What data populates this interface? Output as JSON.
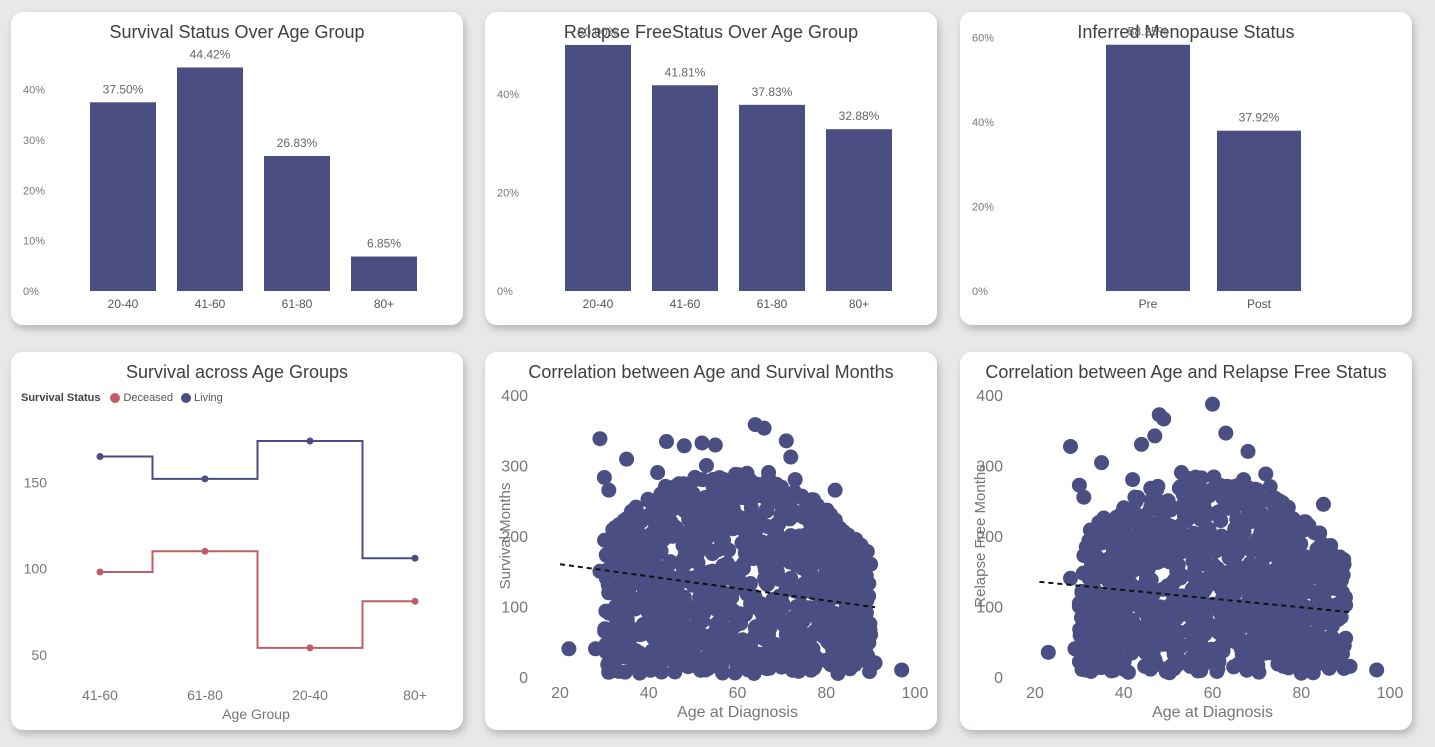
{
  "colors": {
    "bar": "#4a4e82",
    "living": "#4a4e82",
    "deceased": "#c15d67",
    "trend": "#111111",
    "axis_text": "#777777"
  },
  "chart_data": [
    {
      "type": "bar",
      "title": "Survival Status Over Age Group",
      "categories": [
        "20-40",
        "41-60",
        "61-80",
        "80+"
      ],
      "values": [
        37.5,
        44.42,
        26.83,
        6.85
      ],
      "data_labels": [
        "37.50%",
        "44.42%",
        "26.83%",
        "6.85%"
      ],
      "yticks": [
        "0%",
        "10%",
        "20%",
        "30%",
        "40%"
      ],
      "ylim": [
        0,
        46.5
      ]
    },
    {
      "type": "bar",
      "title": "Relapse FreeStatus Over Age Group",
      "categories": [
        "20-40",
        "41-60",
        "61-80",
        "80+"
      ],
      "values": [
        50.0,
        41.81,
        37.83,
        32.88
      ],
      "data_labels": [
        "50.00%",
        "41.81%",
        "37.83%",
        "32.88%"
      ],
      "yticks": [
        "0%",
        "20%",
        "40%"
      ],
      "ylim": [
        0,
        50.6
      ]
    },
    {
      "type": "bar",
      "title": "Inferred Menopause Status",
      "categories": [
        "Pre",
        "Post"
      ],
      "values": [
        58.25,
        37.92
      ],
      "data_labels": [
        "58.25%",
        "37.92%"
      ],
      "yticks": [
        "0%",
        "20%",
        "40%",
        "60%"
      ],
      "ylim": [
        0,
        58.9
      ]
    },
    {
      "type": "line",
      "title": "Survival across Age Groups",
      "xlabel": "Age Group",
      "legend_title": "Survival Status",
      "categories": [
        "41-60",
        "61-80",
        "20-40",
        "80+"
      ],
      "series": [
        {
          "name": "Deceased",
          "values": [
            98,
            110,
            54,
            81
          ]
        },
        {
          "name": "Living",
          "values": [
            165,
            152,
            174,
            106
          ]
        }
      ],
      "yticks": [
        "50",
        "100",
        "150"
      ],
      "ylim": [
        40,
        185
      ]
    },
    {
      "type": "scatter",
      "title": "Correlation between Age and Survival Months",
      "xlabel": "Age at Diagnosis",
      "ylabel": "Survival Months",
      "xlim": [
        20,
        100
      ],
      "ylim": [
        0,
        400
      ],
      "xticks": [
        "20",
        "40",
        "60",
        "80",
        "100"
      ],
      "yticks": [
        "0",
        "100",
        "200",
        "300",
        "400"
      ],
      "trend": {
        "x": [
          20,
          91
        ],
        "y": [
          160,
          99
        ]
      },
      "points": [
        [
          22,
          40
        ],
        [
          29,
          338
        ],
        [
          30,
          283
        ],
        [
          31,
          265
        ],
        [
          35,
          309
        ],
        [
          44,
          334
        ],
        [
          48,
          328
        ],
        [
          49,
          267
        ],
        [
          52,
          332
        ],
        [
          55,
          329
        ],
        [
          64,
          358
        ],
        [
          66,
          353
        ],
        [
          71,
          335
        ],
        [
          72,
          312
        ],
        [
          82,
          265
        ],
        [
          90,
          160
        ],
        [
          97,
          10
        ],
        [
          29,
          150
        ],
        [
          31,
          120
        ],
        [
          28,
          40
        ],
        [
          33,
          90
        ],
        [
          35,
          200
        ],
        [
          37,
          160
        ],
        [
          38,
          60
        ],
        [
          40,
          250
        ],
        [
          41,
          110
        ],
        [
          42,
          180
        ],
        [
          43,
          70
        ],
        [
          45,
          220
        ],
        [
          46,
          140
        ],
        [
          47,
          30
        ],
        [
          48,
          90
        ],
        [
          50,
          260
        ],
        [
          51,
          175
        ],
        [
          52,
          60
        ],
        [
          53,
          120
        ],
        [
          54,
          210
        ],
        [
          55,
          20
        ],
        [
          56,
          150
        ],
        [
          57,
          280
        ],
        [
          58,
          90
        ],
        [
          59,
          240
        ],
        [
          60,
          40
        ],
        [
          61,
          190
        ],
        [
          62,
          130
        ],
        [
          63,
          270
        ],
        [
          64,
          70
        ],
        [
          65,
          220
        ],
        [
          66,
          160
        ],
        [
          67,
          30
        ],
        [
          68,
          110
        ],
        [
          69,
          250
        ],
        [
          70,
          190
        ],
        [
          71,
          60
        ],
        [
          72,
          140
        ],
        [
          73,
          230
        ],
        [
          74,
          90
        ],
        [
          75,
          170
        ],
        [
          76,
          20
        ],
        [
          77,
          120
        ],
        [
          78,
          200
        ],
        [
          79,
          60
        ],
        [
          80,
          150
        ],
        [
          81,
          230
        ],
        [
          82,
          90
        ],
        [
          83,
          40
        ],
        [
          84,
          180
        ],
        [
          85,
          120
        ],
        [
          86,
          60
        ],
        [
          87,
          140
        ],
        [
          88,
          30
        ],
        [
          89,
          90
        ],
        [
          90,
          60
        ],
        [
          91,
          20
        ],
        [
          44,
          100
        ],
        [
          50,
          130
        ],
        [
          56,
          50
        ],
        [
          62,
          210
        ],
        [
          68,
          80
        ],
        [
          74,
          200
        ],
        [
          36,
          230
        ],
        [
          39,
          30
        ],
        [
          42,
          290
        ],
        [
          47,
          200
        ],
        [
          53,
          300
        ],
        [
          58,
          180
        ],
        [
          63,
          100
        ],
        [
          67,
          290
        ],
        [
          73,
          280
        ],
        [
          77,
          40
        ],
        [
          84,
          80
        ],
        [
          86,
          160
        ],
        [
          88,
          110
        ]
      ]
    },
    {
      "type": "scatter",
      "title": "Correlation between Age and Relapse Free Status",
      "xlabel": "Age at Diagnosis",
      "ylabel": "Relapse Free Months",
      "xlim": [
        20,
        100
      ],
      "ylim": [
        0,
        400
      ],
      "xticks": [
        "20",
        "40",
        "60",
        "80",
        "100"
      ],
      "yticks": [
        "0",
        "100",
        "200",
        "300",
        "400"
      ],
      "trend": {
        "x": [
          21,
          91
        ],
        "y": [
          135,
          92
        ]
      },
      "points": [
        [
          23,
          35
        ],
        [
          28,
          327
        ],
        [
          30,
          272
        ],
        [
          31,
          255
        ],
        [
          35,
          304
        ],
        [
          44,
          330
        ],
        [
          47,
          342
        ],
        [
          48,
          372
        ],
        [
          49,
          366
        ],
        [
          60,
          387
        ],
        [
          63,
          346
        ],
        [
          68,
          320
        ],
        [
          72,
          288
        ],
        [
          85,
          245
        ],
        [
          90,
          102
        ],
        [
          97,
          10
        ],
        [
          28,
          140
        ],
        [
          30,
          100
        ],
        [
          29,
          40
        ],
        [
          33,
          80
        ],
        [
          35,
          190
        ],
        [
          37,
          150
        ],
        [
          38,
          50
        ],
        [
          40,
          240
        ],
        [
          41,
          100
        ],
        [
          42,
          170
        ],
        [
          43,
          60
        ],
        [
          45,
          210
        ],
        [
          46,
          130
        ],
        [
          47,
          25
        ],
        [
          48,
          85
        ],
        [
          50,
          250
        ],
        [
          51,
          165
        ],
        [
          52,
          55
        ],
        [
          53,
          115
        ],
        [
          54,
          200
        ],
        [
          55,
          15
        ],
        [
          56,
          140
        ],
        [
          57,
          270
        ],
        [
          58,
          85
        ],
        [
          59,
          230
        ],
        [
          60,
          35
        ],
        [
          61,
          180
        ],
        [
          62,
          125
        ],
        [
          63,
          260
        ],
        [
          64,
          65
        ],
        [
          65,
          210
        ],
        [
          66,
          150
        ],
        [
          67,
          25
        ],
        [
          68,
          105
        ],
        [
          69,
          240
        ],
        [
          70,
          180
        ],
        [
          71,
          55
        ],
        [
          72,
          130
        ],
        [
          73,
          220
        ],
        [
          74,
          85
        ],
        [
          75,
          160
        ],
        [
          76,
          15
        ],
        [
          77,
          115
        ],
        [
          78,
          190
        ],
        [
          79,
          55
        ],
        [
          80,
          140
        ],
        [
          81,
          220
        ],
        [
          82,
          85
        ],
        [
          83,
          35
        ],
        [
          84,
          170
        ],
        [
          85,
          115
        ],
        [
          86,
          55
        ],
        [
          87,
          130
        ],
        [
          88,
          25
        ],
        [
          89,
          85
        ],
        [
          90,
          55
        ],
        [
          91,
          15
        ],
        [
          44,
          95
        ],
        [
          50,
          125
        ],
        [
          56,
          45
        ],
        [
          62,
          200
        ],
        [
          68,
          75
        ],
        [
          74,
          190
        ],
        [
          36,
          220
        ],
        [
          39,
          25
        ],
        [
          42,
          280
        ],
        [
          47,
          190
        ],
        [
          53,
          290
        ],
        [
          58,
          170
        ],
        [
          63,
          95
        ],
        [
          67,
          280
        ],
        [
          73,
          270
        ],
        [
          77,
          35
        ],
        [
          84,
          75
        ],
        [
          86,
          150
        ],
        [
          88,
          100
        ]
      ]
    }
  ]
}
